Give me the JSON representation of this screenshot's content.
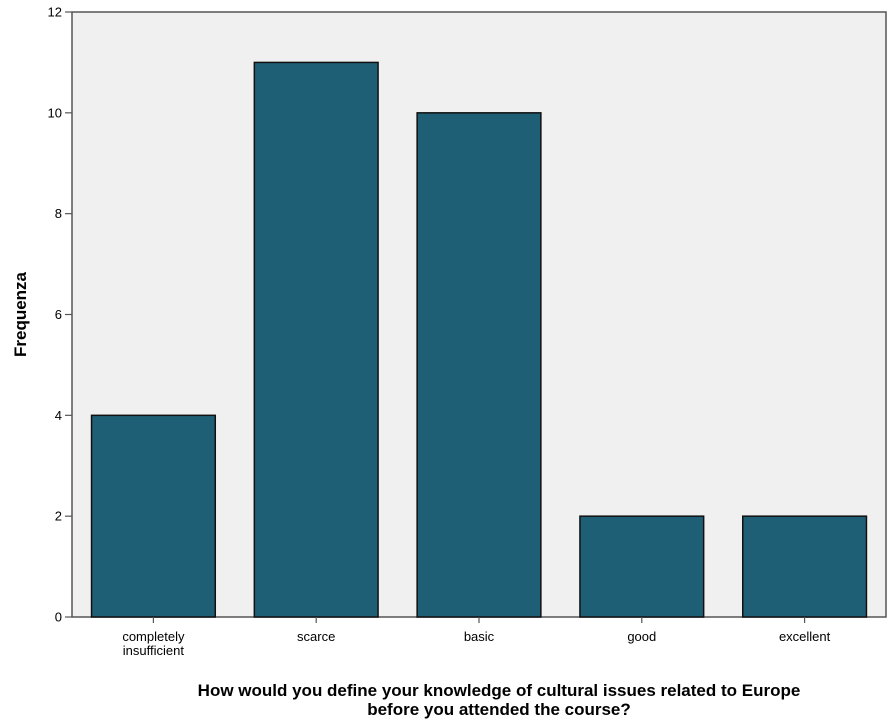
{
  "chart_data": {
    "type": "bar",
    "categories": [
      [
        "completely",
        "insufficient"
      ],
      [
        "scarce"
      ],
      [
        "basic"
      ],
      [
        "good"
      ],
      [
        "excellent"
      ]
    ],
    "values": [
      4,
      11,
      10,
      2,
      2
    ],
    "ylabel": "Frequenza",
    "xlabel_lines": [
      "How would you define your knowledge of cultural issues related to Europe",
      "before you attended the course?"
    ],
    "ylim": [
      0,
      12
    ],
    "yticks": [
      "0",
      "2",
      "4",
      "6",
      "8",
      "10",
      "12"
    ],
    "grid": false,
    "colors": {
      "bar_fill": "#1f5f76",
      "bar_stroke": "#111111",
      "plot_background": "#f0f0f0",
      "axis": "#555555"
    }
  }
}
